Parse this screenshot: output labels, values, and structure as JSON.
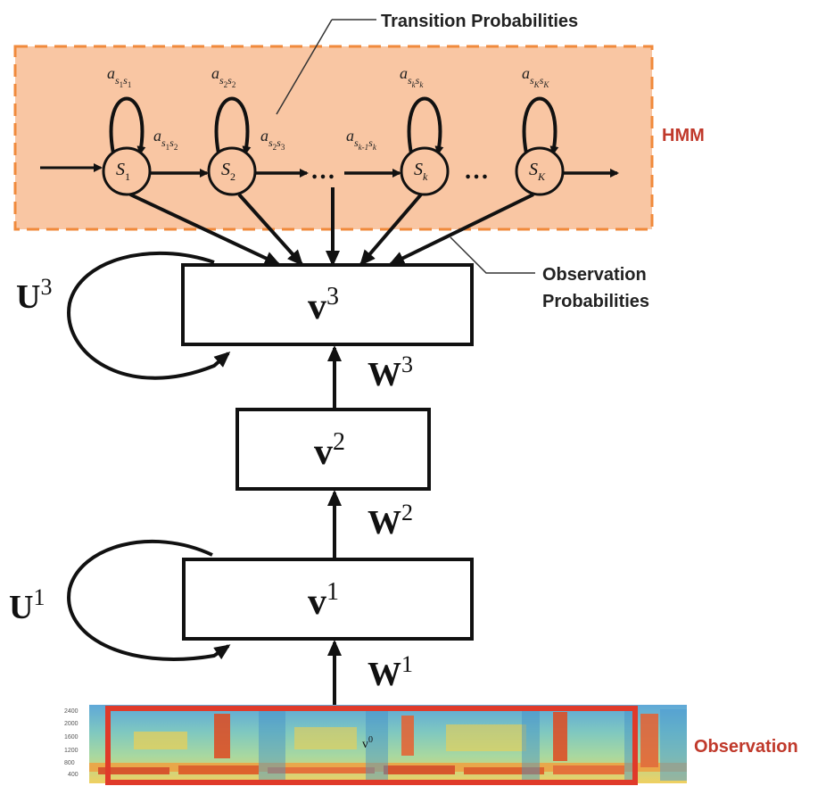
{
  "labels": {
    "transition_probabilities": "Transition Probabilities",
    "hmm": "HMM",
    "observation_probabilities_line1": "Observation",
    "observation_probabilities_line2": "Probabilities",
    "observation": "Observation"
  },
  "hmm_states": {
    "s1": {
      "base": "S",
      "sub": "1"
    },
    "s2": {
      "base": "S",
      "sub": "2"
    },
    "sk": {
      "base": "S",
      "sub": "k"
    },
    "sK": {
      "base": "S",
      "sub": "K"
    },
    "ellipsis1": "…",
    "ellipsis2": "…"
  },
  "transitions": {
    "self_s1": {
      "base": "a",
      "sub1": "s",
      "sub1b": "1",
      "sub2": "s",
      "sub2b": "1"
    },
    "self_s2": {
      "base": "a",
      "sub1": "s",
      "sub1b": "2",
      "sub2": "s",
      "sub2b": "2"
    },
    "self_sk": {
      "base": "a",
      "sub1": "s",
      "sub1b": "k",
      "sub2": "s",
      "sub2b": "k"
    },
    "self_sK": {
      "base": "a",
      "sub1": "s",
      "sub1b": "K",
      "sub2": "s",
      "sub2b": "K"
    },
    "s1_s2": {
      "base": "a",
      "sub1": "s",
      "sub1b": "1",
      "sub2": "s",
      "sub2b": "2"
    },
    "s2_s3": {
      "base": "a",
      "sub1": "s",
      "sub1b": "2",
      "sub2": "s",
      "sub2b": "3"
    },
    "skm1_sk": {
      "base": "a",
      "sub1": "s",
      "sub1b": "k-1",
      "sub2": "s",
      "sub2b": "k"
    }
  },
  "layers": {
    "v3": {
      "base": "v",
      "sup": "3"
    },
    "v2": {
      "base": "v",
      "sup": "2"
    },
    "v1": {
      "base": "v",
      "sup": "1"
    },
    "v0": {
      "base": "v",
      "sup": "0"
    }
  },
  "weights": {
    "W3": {
      "base": "W",
      "sup": "3"
    },
    "W2": {
      "base": "W",
      "sup": "2"
    },
    "W1": {
      "base": "W",
      "sup": "1"
    },
    "U3": {
      "base": "U",
      "sup": "3"
    },
    "U1": {
      "base": "U",
      "sup": "1"
    }
  },
  "spectrogram_axis": [
    "2400",
    "2000",
    "1600",
    "1200",
    "800",
    "400"
  ],
  "colors": {
    "hmm_fill": "#f9c6a3",
    "hmm_border": "#f08a3c",
    "label_red": "#c0392b",
    "observation_border": "#e03a2a"
  }
}
